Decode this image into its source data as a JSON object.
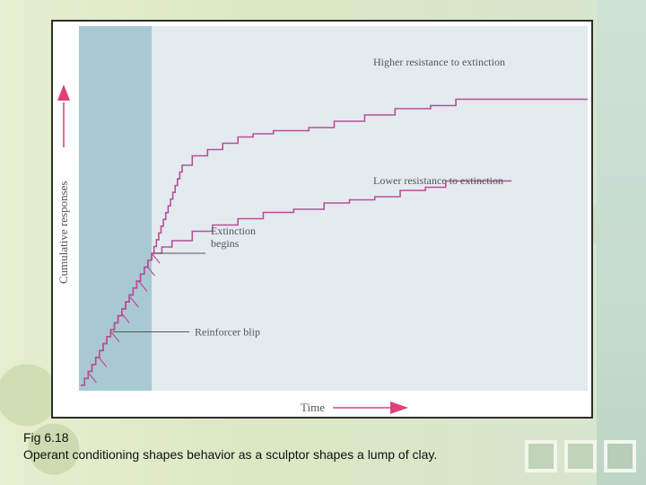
{
  "caption": {
    "figure_number": "Fig 6.18",
    "text": "Operant conditioning shapes behavior as a sculptor shapes a lump of clay."
  },
  "colors": {
    "panel": "#e4ebef",
    "reinforcement_band": "#a9c9d2",
    "curve": "#b84f98",
    "arrow": "#e0407a",
    "text": "#555555"
  },
  "chart_data": {
    "type": "line",
    "title": "",
    "xlabel": "Time",
    "ylabel": "Cumulative responses",
    "xlim": [
      0,
      100
    ],
    "ylim": [
      0,
      100
    ],
    "grid": false,
    "shaded_region": {
      "x": [
        0,
        14
      ]
    },
    "series": [
      {
        "name": "Higher resistance to extinction",
        "points": [
          [
            0,
            0
          ],
          [
            14,
            42
          ],
          [
            20,
            70
          ],
          [
            22,
            73
          ],
          [
            25,
            75
          ],
          [
            28,
            77
          ],
          [
            31,
            79
          ],
          [
            34,
            80
          ],
          [
            38,
            81
          ],
          [
            45,
            82
          ],
          [
            50,
            84
          ],
          [
            56,
            86
          ],
          [
            62,
            88
          ],
          [
            69,
            89
          ],
          [
            74,
            91
          ],
          [
            100,
            91
          ]
        ]
      },
      {
        "name": "Lower resistance to extinction",
        "points": [
          [
            0,
            0
          ],
          [
            14,
            42
          ],
          [
            18,
            46
          ],
          [
            22,
            49
          ],
          [
            26,
            51
          ],
          [
            31,
            53
          ],
          [
            36,
            55
          ],
          [
            42,
            56
          ],
          [
            48,
            58
          ],
          [
            53,
            59
          ],
          [
            58,
            60
          ],
          [
            63,
            62
          ],
          [
            68,
            63
          ],
          [
            72,
            65
          ],
          [
            85,
            65
          ]
        ]
      }
    ],
    "annotations": [
      {
        "label": "Extinction begins",
        "x": 14,
        "y": 42
      },
      {
        "label": "Reinforcer blip",
        "x": 6,
        "y": 17
      }
    ]
  }
}
